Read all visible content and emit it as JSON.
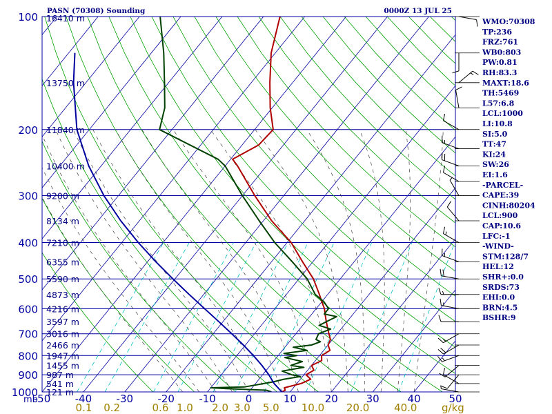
{
  "header": {
    "station_title": "PASN (70308) Sounding",
    "valid_time": "0000Z 13 JUL 25"
  },
  "chart_data": {
    "type": "line",
    "diagram": "skew-T log-P",
    "pressure_range_hPa": [
      1000,
      100
    ],
    "temperature_range_C": [
      -50,
      50
    ],
    "pressure_ticks": [
      "100",
      "200",
      "300",
      "400",
      "500",
      "600",
      "700",
      "800",
      "900",
      "1000"
    ],
    "pressure_tick_values": [
      100,
      200,
      300,
      400,
      500,
      600,
      700,
      800,
      900,
      1000
    ],
    "pressure_unit": "mb",
    "temperature_ticks": [
      "-50",
      "-40",
      "-30",
      "-20",
      "-10",
      "0",
      "10",
      "20",
      "30",
      "40",
      "50"
    ],
    "mixing_ratio_ticks": [
      "0.1",
      "0.2",
      "0.6",
      "1.0",
      "2.0",
      "3.0",
      "5.0",
      "10.0",
      "20.0",
      "40.0"
    ],
    "mixing_ratio_unit": "g/kg",
    "height_labels": [
      {
        "text": "16410 m",
        "p": 100
      },
      {
        "text": "13750 m",
        "p": 150
      },
      {
        "text": "11840 m",
        "p": 200
      },
      {
        "text": "10400 m",
        "p": 250
      },
      {
        "text": "9200 m",
        "p": 300
      },
      {
        "text": "8134 m",
        "p": 350
      },
      {
        "text": "7210 m",
        "p": 400
      },
      {
        "text": "6355 m",
        "p": 450
      },
      {
        "text": "5590 m",
        "p": 500
      },
      {
        "text": "4873 m",
        "p": 550
      },
      {
        "text": "4216 m",
        "p": 600
      },
      {
        "text": "3597 m",
        "p": 650
      },
      {
        "text": "3016 m",
        "p": 700
      },
      {
        "text": "2466 m",
        "p": 750
      },
      {
        "text": "1947 m",
        "p": 800
      },
      {
        "text": "1455 m",
        "p": 850
      },
      {
        "text": "987 m",
        "p": 900
      },
      {
        "text": "541 m",
        "p": 950
      },
      {
        "text": "121 m",
        "p": 1000
      }
    ],
    "series": [
      {
        "color": "#b00000",
        "points": [
          [
            1000,
            8.0
          ],
          [
            990,
            8.5
          ],
          [
            975,
            7.8
          ],
          [
            950,
            11.0
          ],
          [
            925,
            12.5
          ],
          [
            900,
            10.5
          ],
          [
            875,
            11.5
          ],
          [
            850,
            10.0
          ],
          [
            825,
            11.5
          ],
          [
            800,
            10.5
          ],
          [
            775,
            11.5
          ],
          [
            750,
            10.0
          ],
          [
            725,
            9.5
          ],
          [
            700,
            8.0
          ],
          [
            675,
            6.5
          ],
          [
            650,
            5.0
          ],
          [
            625,
            3.5
          ],
          [
            600,
            2.0
          ],
          [
            575,
            0.0
          ],
          [
            550,
            -2.0
          ],
          [
            500,
            -6.5
          ],
          [
            450,
            -12.5
          ],
          [
            400,
            -19.0
          ],
          [
            350,
            -28.0
          ],
          [
            300,
            -37.0
          ],
          [
            250,
            -47.0
          ],
          [
            240,
            -49.5
          ],
          [
            220,
            -46.0
          ],
          [
            200,
            -45.5
          ],
          [
            175,
            -50.5
          ],
          [
            150,
            -55.5
          ],
          [
            125,
            -61.0
          ],
          [
            100,
            -66.0
          ]
        ]
      },
      {
        "color": "#004000",
        "points": [
          [
            1000,
            5.5
          ],
          [
            990,
            4.0
          ],
          [
            980,
            -6.0
          ],
          [
            975,
            -10.0
          ],
          [
            970,
            -2.0
          ],
          [
            950,
            2.0
          ],
          [
            940,
            4.0
          ],
          [
            925,
            6.0
          ],
          [
            910,
            9.5
          ],
          [
            900,
            7.0
          ],
          [
            880,
            4.0
          ],
          [
            860,
            8.5
          ],
          [
            850,
            5.0
          ],
          [
            830,
            7.0
          ],
          [
            810,
            2.0
          ],
          [
            800,
            4.5
          ],
          [
            790,
            1.0
          ],
          [
            775,
            6.0
          ],
          [
            760,
            2.0
          ],
          [
            750,
            6.0
          ],
          [
            735,
            7.5
          ],
          [
            725,
            6.0
          ],
          [
            700,
            5.5
          ],
          [
            680,
            7.5
          ],
          [
            665,
            4.0
          ],
          [
            650,
            5.0
          ],
          [
            630,
            6.5
          ],
          [
            620,
            3.0
          ],
          [
            600,
            3.0
          ],
          [
            575,
            0.5
          ],
          [
            550,
            -3.0
          ],
          [
            500,
            -8.0
          ],
          [
            450,
            -15.0
          ],
          [
            400,
            -23.0
          ],
          [
            350,
            -31.0
          ],
          [
            300,
            -40.0
          ],
          [
            250,
            -50.0
          ],
          [
            240,
            -53.0
          ],
          [
            200,
            -73.0
          ],
          [
            175,
            -76.0
          ],
          [
            150,
            -81.0
          ],
          [
            125,
            -87.0
          ],
          [
            100,
            -95.0
          ]
        ]
      },
      {
        "color": "#0000a0",
        "points": [
          [
            1000,
            8.0
          ],
          [
            950,
            4.5
          ],
          [
            900,
            1.5
          ],
          [
            850,
            -2.0
          ],
          [
            800,
            -6.0
          ],
          [
            750,
            -10.5
          ],
          [
            700,
            -15.5
          ],
          [
            650,
            -21.0
          ],
          [
            600,
            -27.0
          ],
          [
            550,
            -33.5
          ],
          [
            500,
            -40.5
          ],
          [
            450,
            -48.0
          ],
          [
            400,
            -56.0
          ],
          [
            350,
            -64.5
          ],
          [
            300,
            -73.5
          ],
          [
            250,
            -83.0
          ],
          [
            200,
            -93.0
          ],
          [
            150,
            -103.0
          ],
          [
            125,
            -108.5
          ]
        ]
      }
    ],
    "wind_barbs": [
      {
        "p": 100,
        "dir": 100,
        "kt": 10
      },
      {
        "p": 125,
        "dir": 180,
        "kt": 10
      },
      {
        "p": 150,
        "dir": 50,
        "kt": 15
      },
      {
        "p": 175,
        "dir": 350,
        "kt": 10
      },
      {
        "p": 200,
        "dir": 300,
        "kt": 10
      },
      {
        "p": 225,
        "dir": 290,
        "kt": 15
      },
      {
        "p": 250,
        "dir": 290,
        "kt": 20
      },
      {
        "p": 275,
        "dir": 300,
        "kt": 10
      },
      {
        "p": 300,
        "dir": 330,
        "kt": 5
      },
      {
        "p": 350,
        "dir": 320,
        "kt": 10
      },
      {
        "p": 400,
        "dir": 300,
        "kt": 15
      },
      {
        "p": 450,
        "dir": 290,
        "kt": 15
      },
      {
        "p": 500,
        "dir": 280,
        "kt": 20
      },
      {
        "p": 550,
        "dir": 270,
        "kt": 15
      },
      {
        "p": 600,
        "dir": 280,
        "kt": 15
      },
      {
        "p": 650,
        "dir": 270,
        "kt": 10
      },
      {
        "p": 700,
        "dir": 240,
        "kt": 15
      },
      {
        "p": 750,
        "dir": 240,
        "kt": 20
      },
      {
        "p": 800,
        "dir": 250,
        "kt": 15
      },
      {
        "p": 850,
        "dir": 230,
        "kt": 10
      },
      {
        "p": 900,
        "dir": 220,
        "kt": 10
      },
      {
        "p": 950,
        "dir": 300,
        "kt": 10
      },
      {
        "p": 1000,
        "dir": 280,
        "kt": 5
      }
    ],
    "colors": {
      "frame": "#0000a0",
      "isobar": "#0000a0",
      "isotherm": "#0000a0",
      "dry_adiabat": "#00a000",
      "moist_adiabat": "#404040",
      "mixing_ratio": "#00c0c0",
      "tick_labels": "#0000a0",
      "mixing_ratio_labels": "#a08000",
      "index_text": "#000080"
    }
  },
  "indices": [
    "WMO:70308",
    "TP:236",
    "FRZ:761",
    "WB0:803",
    "PW:0.81",
    "RH:83.3",
    "MAXT:18.6",
    "TH:5469",
    "L57:6.8",
    "LCL:1000",
    "LI:10.8",
    "SI:5.0",
    "TT:47",
    "KI:24",
    "SW:26",
    "EI:1.6",
    "-PARCEL-",
    "CAPE:39",
    "CINH:80204",
    "LCL:900",
    "CAP:10.6",
    "LFC:-1",
    "-WIND-",
    "STM:128/7",
    "HEL:12",
    "SHR+:0.0",
    "SRDS:73",
    "EHI:0.0",
    "BRN:4.5",
    "BSHR:9"
  ]
}
